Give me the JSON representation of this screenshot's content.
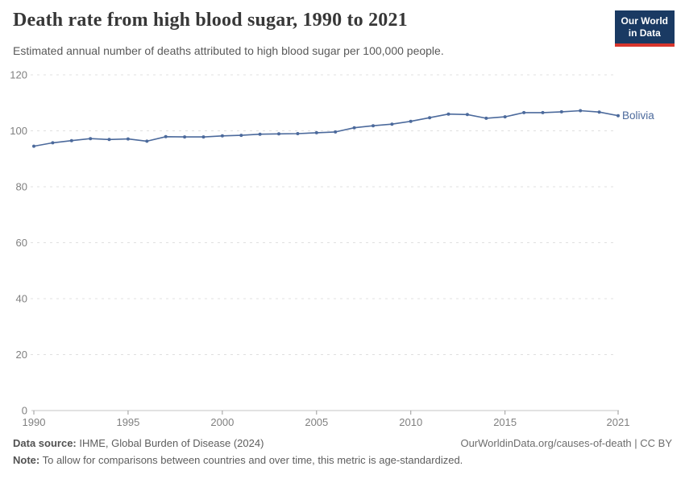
{
  "header": {
    "title": "Death rate from high blood sugar, 1990 to 2021",
    "subtitle": "Estimated annual number of deaths attributed to high blood sugar per 100,000 people."
  },
  "logo": {
    "line1": "Our World",
    "line2": "in Data",
    "bg_color": "#1a3a63",
    "bar_color": "#d8352c"
  },
  "chart_data": {
    "type": "line",
    "title": "Death rate from high blood sugar, 1990 to 2021",
    "subtitle": "Estimated annual number of deaths attributed to high blood sugar per 100,000 people.",
    "xlabel": "",
    "ylabel": "",
    "xlim": [
      1990,
      2021
    ],
    "ylim": [
      0,
      120
    ],
    "xticks": [
      1990,
      1995,
      2000,
      2005,
      2010,
      2015,
      2021
    ],
    "yticks": [
      0,
      20,
      40,
      60,
      80,
      100,
      120
    ],
    "grid": "horizontal-dashed",
    "legend_position": "end-of-line-label",
    "x": [
      1990,
      1991,
      1992,
      1993,
      1994,
      1995,
      1996,
      1997,
      1998,
      1999,
      2000,
      2001,
      2002,
      2003,
      2004,
      2005,
      2006,
      2007,
      2008,
      2009,
      2010,
      2011,
      2012,
      2013,
      2014,
      2015,
      2016,
      2017,
      2018,
      2019,
      2020,
      2021
    ],
    "series": [
      {
        "name": "Bolivia",
        "color": "#4c6a9c",
        "values": [
          94.5,
          95.7,
          96.5,
          97.2,
          96.9,
          97.1,
          96.3,
          97.9,
          97.8,
          97.8,
          98.2,
          98.4,
          98.8,
          98.9,
          99.0,
          99.3,
          99.6,
          101.1,
          101.8,
          102.4,
          103.4,
          104.7,
          106.0,
          105.8,
          104.5,
          105.0,
          106.5,
          106.5,
          106.8,
          107.2,
          106.7,
          105.4
        ]
      }
    ],
    "colors": {
      "gridline": "#e0e0e0",
      "axis_line": "#c6c6c6",
      "tick_mark": "#9a9a9a",
      "tick_label": "#808080"
    }
  },
  "footer": {
    "source_label": "Data source:",
    "source_text": " IHME, Global Burden of Disease (2024)",
    "credit": "OurWorldinData.org/causes-of-death | CC BY",
    "note_label": "Note:",
    "note_text": " To allow for comparisons between countries and over time, this metric is age-standardized."
  }
}
